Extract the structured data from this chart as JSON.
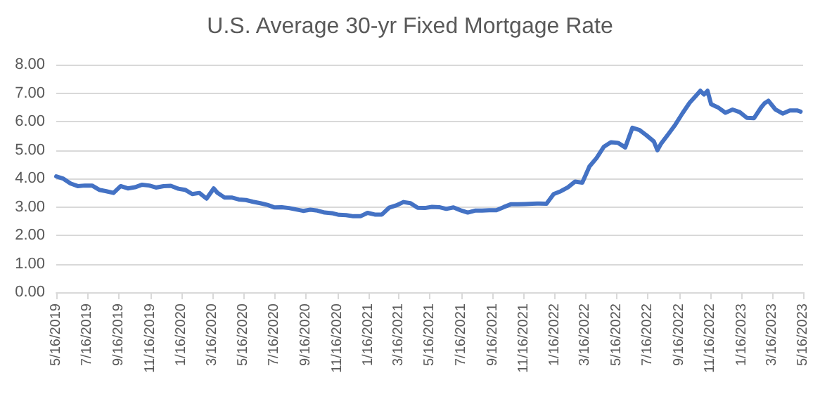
{
  "chart_data": {
    "type": "line",
    "title": "U.S. Average 30-yr Fixed Mortgage Rate",
    "x": [
      "2019-05-16",
      "2019-05-30",
      "2019-06-13",
      "2019-06-27",
      "2019-07-11",
      "2019-07-25",
      "2019-08-08",
      "2019-08-22",
      "2019-09-05",
      "2019-09-19",
      "2019-10-03",
      "2019-10-17",
      "2019-10-31",
      "2019-11-14",
      "2019-11-27",
      "2019-12-12",
      "2019-12-26",
      "2020-01-09",
      "2020-01-23",
      "2020-02-06",
      "2020-02-20",
      "2020-03-05",
      "2020-03-19",
      "2020-03-26",
      "2020-04-09",
      "2020-04-23",
      "2020-05-07",
      "2020-05-21",
      "2020-06-04",
      "2020-06-18",
      "2020-07-02",
      "2020-07-16",
      "2020-07-30",
      "2020-08-13",
      "2020-08-27",
      "2020-09-10",
      "2020-09-24",
      "2020-10-08",
      "2020-10-22",
      "2020-11-05",
      "2020-11-19",
      "2020-12-03",
      "2020-12-17",
      "2020-12-31",
      "2021-01-14",
      "2021-01-28",
      "2021-02-11",
      "2021-02-25",
      "2021-03-11",
      "2021-03-25",
      "2021-04-08",
      "2021-04-22",
      "2021-05-06",
      "2021-05-20",
      "2021-06-03",
      "2021-06-17",
      "2021-07-01",
      "2021-07-15",
      "2021-07-29",
      "2021-08-12",
      "2021-08-26",
      "2021-09-09",
      "2021-09-23",
      "2021-10-07",
      "2021-10-21",
      "2021-11-04",
      "2021-11-18",
      "2021-12-02",
      "2021-12-16",
      "2021-12-30",
      "2022-01-13",
      "2022-01-27",
      "2022-02-10",
      "2022-02-24",
      "2022-03-10",
      "2022-03-24",
      "2022-04-07",
      "2022-04-21",
      "2022-05-05",
      "2022-05-19",
      "2022-06-02",
      "2022-06-16",
      "2022-06-30",
      "2022-07-14",
      "2022-07-28",
      "2022-08-04",
      "2022-08-11",
      "2022-08-25",
      "2022-09-08",
      "2022-09-22",
      "2022-10-06",
      "2022-10-20",
      "2022-10-27",
      "2022-11-03",
      "2022-11-10",
      "2022-11-17",
      "2022-12-01",
      "2022-12-15",
      "2022-12-29",
      "2023-01-12",
      "2023-01-26",
      "2023-02-09",
      "2023-02-23",
      "2023-03-02",
      "2023-03-09",
      "2023-03-23",
      "2023-04-06",
      "2023-04-20",
      "2023-05-04",
      "2023-05-11"
    ],
    "series": [
      {
        "color": "#4472c4",
        "values": [
          4.07,
          3.99,
          3.82,
          3.73,
          3.75,
          3.75,
          3.6,
          3.55,
          3.49,
          3.73,
          3.65,
          3.69,
          3.78,
          3.75,
          3.68,
          3.73,
          3.74,
          3.64,
          3.6,
          3.45,
          3.49,
          3.29,
          3.65,
          3.5,
          3.33,
          3.33,
          3.26,
          3.24,
          3.18,
          3.13,
          3.07,
          2.98,
          2.99,
          2.96,
          2.91,
          2.86,
          2.9,
          2.87,
          2.8,
          2.78,
          2.72,
          2.71,
          2.67,
          2.67,
          2.79,
          2.73,
          2.73,
          2.97,
          3.05,
          3.17,
          3.13,
          2.97,
          2.96,
          3.0,
          2.99,
          2.93,
          2.98,
          2.88,
          2.8,
          2.87,
          2.87,
          2.88,
          2.88,
          2.99,
          3.09,
          3.09,
          3.1,
          3.11,
          3.12,
          3.11,
          3.45,
          3.55,
          3.69,
          3.89,
          3.85,
          4.42,
          4.72,
          5.11,
          5.27,
          5.25,
          5.09,
          5.78,
          5.7,
          5.51,
          5.3,
          4.99,
          5.22,
          5.55,
          5.89,
          6.29,
          6.66,
          6.94,
          7.08,
          6.95,
          7.08,
          6.61,
          6.49,
          6.31,
          6.42,
          6.33,
          6.13,
          6.12,
          6.5,
          6.65,
          6.73,
          6.42,
          6.28,
          6.39,
          6.39,
          6.35
        ]
      }
    ],
    "xlim": [
      "2019-05-16",
      "2023-05-16"
    ],
    "xticks": [
      {
        "value": "2019-05-16",
        "label": "5/16/2019"
      },
      {
        "value": "2019-07-16",
        "label": "7/16/2019"
      },
      {
        "value": "2019-09-16",
        "label": "9/16/2019"
      },
      {
        "value": "2019-11-16",
        "label": "11/16/2019"
      },
      {
        "value": "2020-01-16",
        "label": "1/16/2020"
      },
      {
        "value": "2020-03-16",
        "label": "3/16/2020"
      },
      {
        "value": "2020-05-16",
        "label": "5/16/2020"
      },
      {
        "value": "2020-07-16",
        "label": "7/16/2020"
      },
      {
        "value": "2020-09-16",
        "label": "9/16/2020"
      },
      {
        "value": "2020-11-16",
        "label": "11/16/2020"
      },
      {
        "value": "2021-01-16",
        "label": "1/16/2021"
      },
      {
        "value": "2021-03-16",
        "label": "3/16/2021"
      },
      {
        "value": "2021-05-16",
        "label": "5/16/2021"
      },
      {
        "value": "2021-07-16",
        "label": "7/16/2021"
      },
      {
        "value": "2021-09-16",
        "label": "9/16/2021"
      },
      {
        "value": "2021-11-16",
        "label": "11/16/2021"
      },
      {
        "value": "2022-01-16",
        "label": "1/16/2022"
      },
      {
        "value": "2022-03-16",
        "label": "3/16/2022"
      },
      {
        "value": "2022-05-16",
        "label": "5/16/2022"
      },
      {
        "value": "2022-07-16",
        "label": "7/16/2022"
      },
      {
        "value": "2022-09-16",
        "label": "9/16/2022"
      },
      {
        "value": "2022-11-16",
        "label": "11/16/2022"
      },
      {
        "value": "2023-01-16",
        "label": "1/16/2023"
      },
      {
        "value": "2023-03-16",
        "label": "3/16/2023"
      },
      {
        "value": "2023-05-16",
        "label": "5/16/2023"
      }
    ],
    "ylim": [
      0,
      8
    ],
    "yticks": [
      {
        "value": 0,
        "label": "0.00"
      },
      {
        "value": 1,
        "label": "1.00"
      },
      {
        "value": 2,
        "label": "2.00"
      },
      {
        "value": 3,
        "label": "3.00"
      },
      {
        "value": 4,
        "label": "4.00"
      },
      {
        "value": 5,
        "label": "5.00"
      },
      {
        "value": 6,
        "label": "6.00"
      },
      {
        "value": 7,
        "label": "7.00"
      },
      {
        "value": 8,
        "label": "8.00"
      }
    ],
    "grid": "y",
    "marker": "none",
    "line_style": "solid"
  }
}
